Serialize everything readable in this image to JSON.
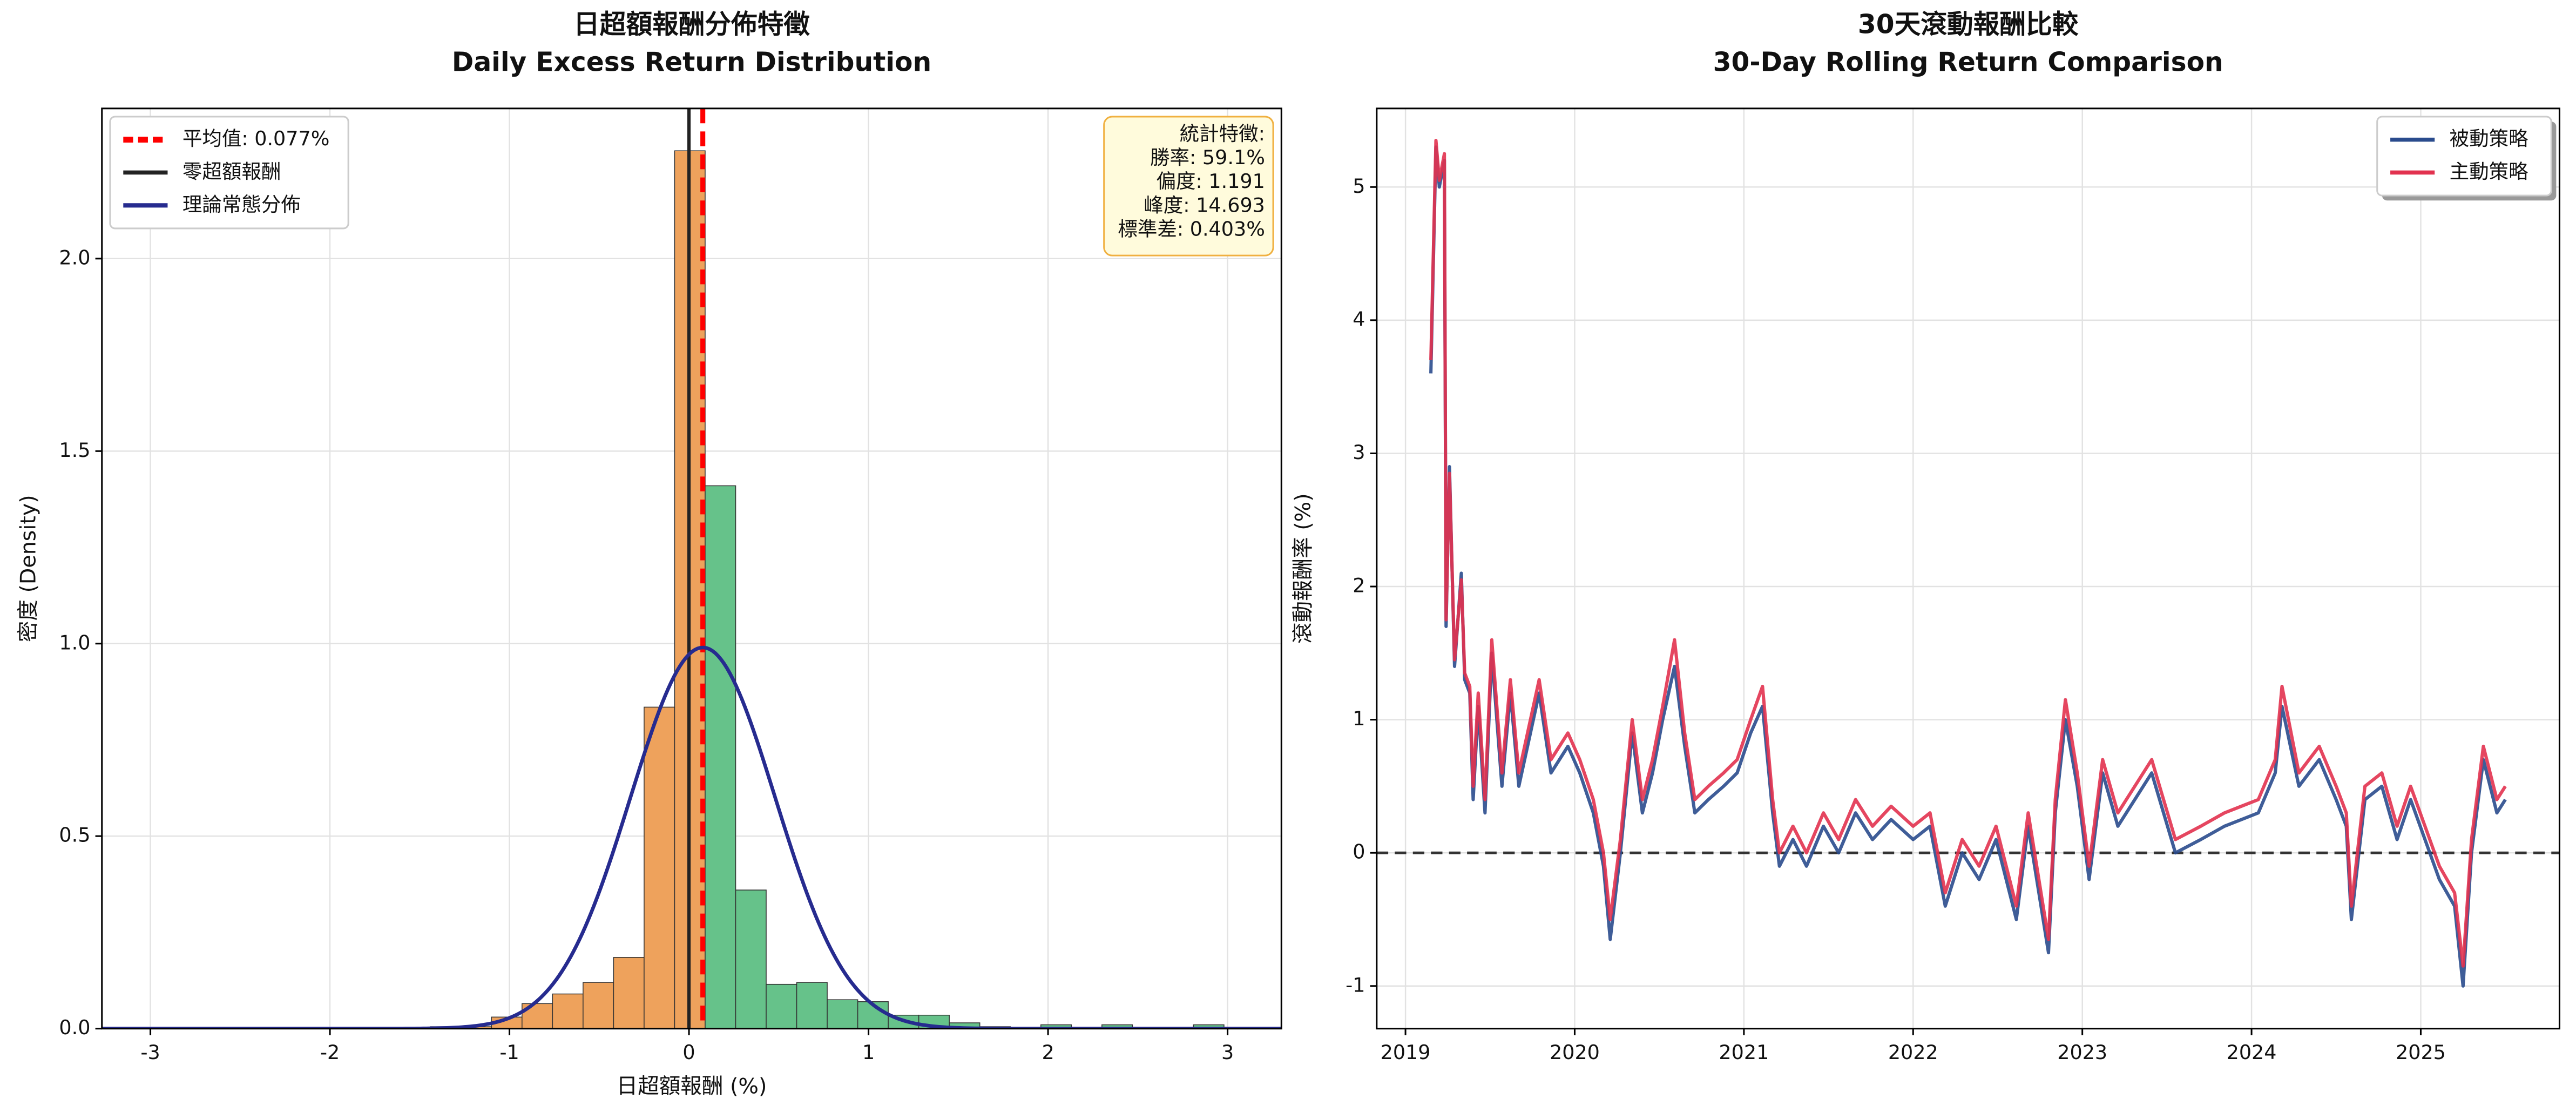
{
  "chart_data": [
    {
      "type": "histogram",
      "title": "日超額報酬分佈特徵",
      "subtitle": "Daily Excess Return Distribution",
      "xlabel": "日超額報酬 (%)",
      "ylabel": "密度 (Density)",
      "bins": [
        -1.44,
        -1.27,
        -1.1,
        -0.93,
        -0.76,
        -0.59,
        -0.42,
        -0.25,
        -0.08,
        0.09,
        0.26,
        0.43,
        0.6,
        0.77,
        0.94,
        1.11,
        1.28,
        1.45,
        1.62,
        1.79,
        1.96,
        2.13,
        2.3,
        2.47,
        2.64,
        2.81,
        2.98
      ],
      "values": [
        0.005,
        0.005,
        0.03,
        0.065,
        0.09,
        0.12,
        0.185,
        0.835,
        2.28,
        1.41,
        0.36,
        0.115,
        0.12,
        0.075,
        0.07,
        0.035,
        0.035,
        0.015,
        0.005,
        0.003,
        0.01,
        0.003,
        0.01,
        0.003,
        0.003,
        0.01
      ],
      "bar_colors": [
        "#eea25c",
        "#eea25c",
        "#eea25c",
        "#eea25c",
        "#eea25c",
        "#eea25c",
        "#eea25c",
        "#eea25c",
        "#eea25c",
        "#66c28a",
        "#66c28a",
        "#66c28a",
        "#66c28a",
        "#66c28a",
        "#66c28a",
        "#66c28a",
        "#66c28a",
        "#66c28a",
        "#66c28a",
        "#66c28a",
        "#66c28a",
        "#66c28a",
        "#66c28a",
        "#66c28a",
        "#66c28a",
        "#66c28a"
      ],
      "vlines": [
        {
          "name": "平均值: 0.077%",
          "value": 0.077,
          "color": "#ff0000",
          "dash": true
        },
        {
          "name": "零超額報酬",
          "value": 0,
          "color": "#222222",
          "dash": false
        }
      ],
      "normal_curve": {
        "name": "理論常態分佈",
        "color": "#262b8f",
        "mean": 0.077,
        "std": 0.403
      },
      "stats_box": [
        "統計特徵:",
        "勝率: 59.1%",
        "偏度: 1.191",
        "峰度: 14.693",
        "標準差: 0.403%"
      ],
      "xlim": [
        -3.27,
        3.3
      ],
      "ylim": [
        0,
        2.39
      ],
      "xticks": [
        -3,
        -2,
        -1,
        0,
        1,
        2,
        3
      ],
      "yticks": [
        {
          "value": 0,
          "label": "0.0"
        },
        0.5,
        {
          "value": 1,
          "label": "1.0"
        },
        1.5,
        {
          "value": 2,
          "label": "2.0"
        }
      ],
      "grid": true,
      "legend": "upper left"
    },
    {
      "type": "line",
      "title": "30天滾動報酬比較",
      "subtitle": "30-Day Rolling Return Comparison",
      "ylabel": "滾動報酬率 (%)",
      "x": [
        2019.15,
        2019.18,
        2019.2,
        2019.23,
        2019.24,
        2019.26,
        2019.29,
        2019.33,
        2019.35,
        2019.38,
        2019.4,
        2019.43,
        2019.47,
        2019.51,
        2019.57,
        2019.62,
        2019.67,
        2019.79,
        2019.86,
        2019.96,
        2020.03,
        2020.11,
        2020.17,
        2020.21,
        2020.27,
        2020.34,
        2020.4,
        2020.46,
        2020.52,
        2020.59,
        2020.65,
        2020.71,
        2020.79,
        2020.88,
        2020.96,
        2021.04,
        2021.11,
        2021.17,
        2021.21,
        2021.29,
        2021.37,
        2021.47,
        2021.56,
        2021.66,
        2021.76,
        2021.87,
        2022.0,
        2022.1,
        2022.19,
        2022.29,
        2022.39,
        2022.49,
        2022.61,
        2022.68,
        2022.8,
        2022.84,
        2022.9,
        2022.97,
        2023.04,
        2023.12,
        2023.21,
        2023.41,
        2023.55,
        2023.7,
        2023.84,
        2023.94,
        2024.04,
        2024.14,
        2024.18,
        2024.28,
        2024.4,
        2024.5,
        2024.56,
        2024.59,
        2024.67,
        2024.77,
        2024.86,
        2024.94,
        2025.11,
        2025.2,
        2025.25,
        2025.3,
        2025.37,
        2025.45,
        2025.5
      ],
      "series": [
        {
          "name": "被動策略",
          "color": "#2a4b8d",
          "values": [
            3.6,
            5.3,
            5.0,
            5.2,
            1.7,
            2.9,
            1.4,
            2.1,
            1.3,
            1.2,
            0.4,
            1.1,
            0.3,
            1.5,
            0.5,
            1.2,
            0.5,
            1.2,
            0.6,
            0.8,
            0.6,
            0.3,
            -0.1,
            -0.65,
            0.0,
            0.9,
            0.3,
            0.6,
            1.0,
            1.4,
            0.8,
            0.3,
            0.4,
            0.5,
            0.6,
            0.9,
            1.1,
            0.3,
            -0.1,
            0.1,
            -0.1,
            0.2,
            0.0,
            0.3,
            0.1,
            0.25,
            0.1,
            0.2,
            -0.4,
            0.0,
            -0.2,
            0.1,
            -0.5,
            0.2,
            -0.75,
            0.3,
            1.0,
            0.5,
            -0.2,
            0.6,
            0.2,
            0.6,
            0.0,
            0.1,
            0.2,
            0.25,
            0.3,
            0.6,
            1.1,
            0.5,
            0.7,
            0.4,
            0.2,
            -0.5,
            0.4,
            0.5,
            0.1,
            0.4,
            -0.2,
            -0.4,
            -1.0,
            0.0,
            0.7,
            0.3,
            0.4
          ]
        },
        {
          "name": "主動策略",
          "color": "#e2324f",
          "values": [
            3.7,
            5.35,
            5.05,
            5.25,
            1.75,
            2.85,
            1.45,
            2.05,
            1.35,
            1.25,
            0.5,
            1.2,
            0.4,
            1.6,
            0.6,
            1.3,
            0.6,
            1.3,
            0.7,
            0.9,
            0.7,
            0.4,
            0.0,
            -0.5,
            0.1,
            1.0,
            0.4,
            0.7,
            1.1,
            1.6,
            0.9,
            0.4,
            0.5,
            0.6,
            0.7,
            1.0,
            1.25,
            0.4,
            0.0,
            0.2,
            0.0,
            0.3,
            0.1,
            0.4,
            0.2,
            0.35,
            0.2,
            0.3,
            -0.3,
            0.1,
            -0.1,
            0.2,
            -0.4,
            0.3,
            -0.65,
            0.4,
            1.15,
            0.6,
            -0.1,
            0.7,
            0.3,
            0.7,
            0.1,
            0.2,
            0.3,
            0.35,
            0.4,
            0.7,
            1.25,
            0.6,
            0.8,
            0.5,
            0.3,
            -0.4,
            0.5,
            0.6,
            0.2,
            0.5,
            -0.1,
            -0.3,
            -0.85,
            0.1,
            0.8,
            0.4,
            0.5
          ]
        }
      ],
      "hline": {
        "value": 0,
        "color": "#333333",
        "dash": true
      },
      "xlim": [
        2018.83,
        2025.82
      ],
      "ylim": [
        -1.32,
        5.59
      ],
      "xticks": [
        2019,
        2020,
        2021,
        2022,
        2023,
        2024,
        2025
      ],
      "yticks": [
        -1,
        0,
        1,
        2,
        3,
        4,
        5
      ],
      "grid": true,
      "legend": "upper right"
    }
  ]
}
